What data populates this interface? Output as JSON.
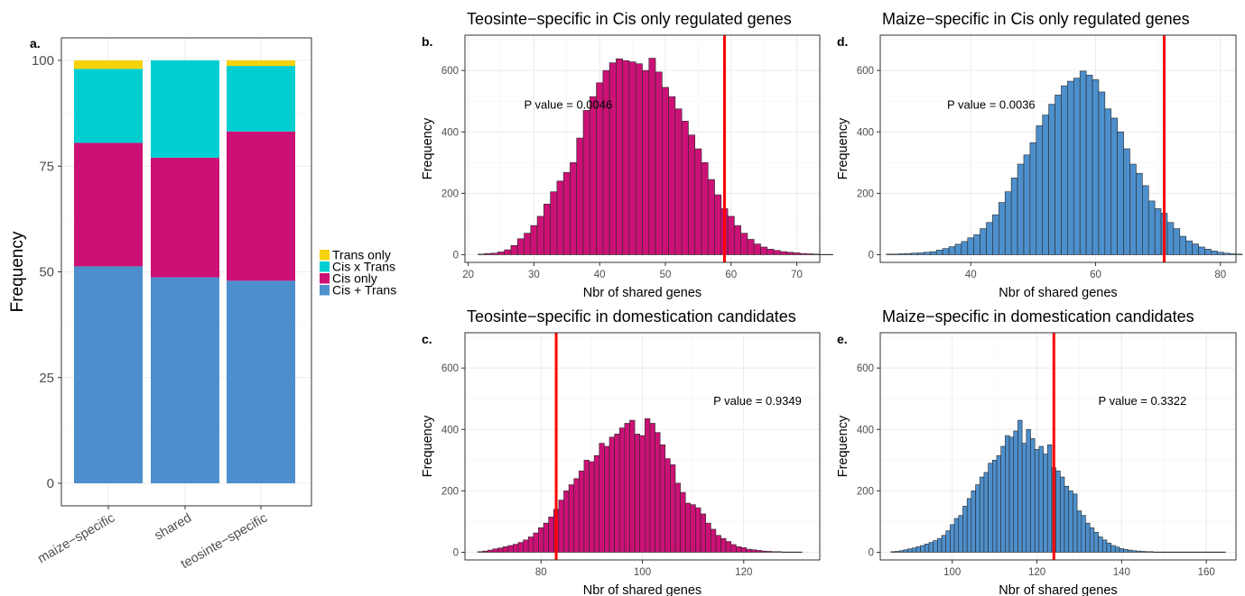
{
  "chart_data": [
    {
      "panel": "a.",
      "type": "bar",
      "stacked": true,
      "categories": [
        "maize−specific",
        "shared",
        "teosinte−specific"
      ],
      "ylabel": "Frequency",
      "ylim": [
        0,
        100
      ],
      "yticks": [
        0,
        25,
        50,
        75,
        100
      ],
      "legend_position": "right",
      "series": [
        {
          "name": "Cis + Trans",
          "color": "#4D8FCC",
          "values": [
            51.3,
            48.7,
            47.9
          ]
        },
        {
          "name": "Cis only",
          "color": "#CC1176",
          "values": [
            29.2,
            28.3,
            35.3
          ]
        },
        {
          "name": "Cis x Trans",
          "color": "#00CED0",
          "values": [
            17.5,
            23.0,
            15.5
          ]
        },
        {
          "name": "Trans only",
          "color": "#F6D20A",
          "values": [
            2.0,
            0.0,
            1.3
          ]
        }
      ],
      "legend_order": [
        "Trans only",
        "Cis x Trans",
        "Cis only",
        "Cis + Trans"
      ]
    },
    {
      "panel": "b.",
      "type": "histogram",
      "title": "Teosinte−specific in Cis only regulated genes",
      "xlabel": "Nbr of shared genes",
      "ylabel": "Frequency",
      "fill": "#CC1176",
      "xlim": [
        19.5,
        73.5
      ],
      "ylim": [
        -25,
        715
      ],
      "xticks": [
        20,
        30,
        40,
        50,
        60,
        70
      ],
      "yticks": [
        0,
        200,
        400,
        600
      ],
      "bin_start": 22,
      "bin_width": 1,
      "values": [
        2,
        4,
        5,
        9,
        16,
        30,
        52,
        70,
        95,
        125,
        165,
        205,
        240,
        268,
        300,
        380,
        470,
        515,
        560,
        600,
        625,
        638,
        632,
        628,
        622,
        600,
        640,
        595,
        545,
        515,
        475,
        435,
        390,
        345,
        300,
        245,
        195,
        150,
        125,
        95,
        70,
        50,
        35,
        25,
        18,
        14,
        10,
        8,
        6,
        4,
        3,
        2,
        1,
        1
      ],
      "threshold": 59,
      "annotation": "P value = 0.0046",
      "annotation_pos": [
        28.5,
        490
      ]
    },
    {
      "panel": "d.",
      "type": "histogram",
      "title": "Maize−specific in Cis only regulated genes",
      "xlabel": "Nbr of shared genes",
      "ylabel": "Frequency",
      "fill": "#4D8FCC",
      "xlim": [
        25.5,
        82.5
      ],
      "ylim": [
        -25,
        715
      ],
      "xticks": [
        40,
        60,
        80
      ],
      "yticks": [
        0,
        200,
        400,
        600
      ],
      "bin_start": 27,
      "bin_width": 1,
      "values": [
        2,
        2,
        3,
        4,
        5,
        6,
        8,
        10,
        15,
        20,
        26,
        34,
        43,
        55,
        65,
        85,
        105,
        130,
        170,
        205,
        250,
        295,
        325,
        365,
        420,
        455,
        490,
        520,
        550,
        565,
        575,
        598,
        585,
        570,
        530,
        475,
        445,
        400,
        345,
        295,
        265,
        225,
        175,
        150,
        135,
        105,
        85,
        60,
        45,
        35,
        25,
        18,
        12,
        8,
        5,
        3,
        2
      ],
      "threshold": 71,
      "annotation": "P value = 0.0036",
      "annotation_pos": [
        36.2,
        490
      ]
    },
    {
      "panel": "c.",
      "type": "histogram",
      "title": "Teosinte−specific in domestication candidates",
      "xlabel": "Nbr of shared genes",
      "ylabel": "Frequency",
      "fill": "#CC1176",
      "xlim": [
        65,
        135
      ],
      "ylim": [
        -25,
        715
      ],
      "xticks": [
        80,
        100,
        120
      ],
      "yticks": [
        0,
        200,
        400,
        600
      ],
      "bin_start": 68,
      "bin_width": 1,
      "values": [
        2,
        4,
        7,
        11,
        14,
        18,
        22,
        26,
        32,
        40,
        50,
        63,
        80,
        95,
        115,
        140,
        170,
        200,
        220,
        240,
        265,
        300,
        295,
        315,
        355,
        345,
        375,
        385,
        405,
        420,
        430,
        385,
        380,
        435,
        420,
        390,
        350,
        305,
        285,
        225,
        195,
        160,
        155,
        145,
        125,
        95,
        75,
        55,
        45,
        35,
        25,
        18,
        15,
        10,
        8,
        6,
        4,
        3,
        2,
        2,
        1,
        1,
        1,
        1
      ],
      "threshold": 83,
      "annotation": "P value = 0.9349",
      "annotation_pos": [
        114,
        495
      ]
    },
    {
      "panel": "e.",
      "type": "histogram",
      "title": "Maize−specific in domestication candidates",
      "xlabel": "Nbr of shared genes",
      "ylabel": "Frequency",
      "fill": "#4D8FCC",
      "xlim": [
        83,
        167
      ],
      "ylim": [
        -25,
        715
      ],
      "xticks": [
        100,
        120,
        140,
        160
      ],
      "yticks": [
        0,
        200,
        400,
        600
      ],
      "bin_start": 86,
      "bin_width": 1,
      "values": [
        2,
        3,
        5,
        8,
        11,
        14,
        18,
        22,
        27,
        32,
        38,
        45,
        55,
        70,
        90,
        110,
        120,
        150,
        175,
        200,
        220,
        245,
        260,
        290,
        300,
        315,
        345,
        380,
        375,
        395,
        430,
        355,
        400,
        370,
        335,
        345,
        320,
        350,
        275,
        265,
        245,
        215,
        200,
        190,
        135,
        120,
        95,
        80,
        65,
        50,
        40,
        30,
        22,
        17,
        12,
        9,
        7,
        5,
        4,
        3,
        2,
        2,
        1,
        1,
        1,
        1,
        1,
        1,
        1,
        1,
        1,
        1,
        1,
        1,
        1,
        1,
        1,
        1,
        1
      ],
      "threshold": 124,
      "annotation": "P value = 0.3322",
      "annotation_pos": [
        134.5,
        495
      ]
    }
  ]
}
